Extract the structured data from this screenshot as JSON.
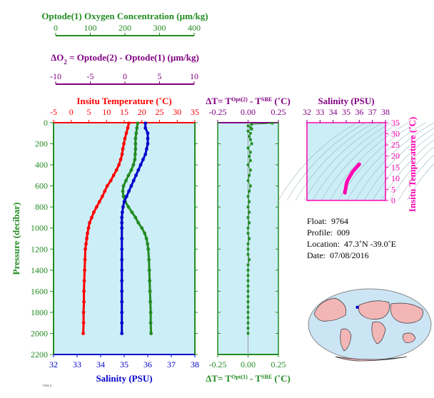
{
  "colors": {
    "green": "#228B22",
    "purple": "#800080",
    "red": "#FF0000",
    "blue": "#0000CC",
    "magenta": "#FF00B0",
    "panel_bg": "#CCEEF7"
  },
  "axes": {
    "oxygen": {
      "label": "Optode(1) Oxygen Concentration",
      "unit": "(µm/kg)",
      "ticks": [
        "0",
        "100",
        "200",
        "300",
        "400"
      ],
      "range": [
        0,
        400
      ]
    },
    "delta_o2": {
      "label": "Optode(2) - Optode(1)",
      "lhs_main": "ΔO",
      "lhs_sub": "2",
      "lhs_eq": " = ",
      "unit": "(µm/kg)",
      "ticks": [
        "-10",
        "-5",
        "0",
        "5",
        "10"
      ],
      "range": [
        -10,
        10
      ]
    },
    "temperature": {
      "label": "Insitu Temperature",
      "unit": "(˚C)",
      "ticks": [
        "-5",
        "0",
        "5",
        "10",
        "15",
        "20",
        "25",
        "30",
        "35"
      ],
      "range": [
        -5,
        35
      ]
    },
    "salinity": {
      "label": "Salinity",
      "unit": "(PSU)",
      "ticks": [
        "32",
        "33",
        "34",
        "35",
        "36",
        "37",
        "38"
      ],
      "range": [
        32,
        38
      ]
    },
    "pressure": {
      "label": "Pressure (decibar)",
      "ticks": [
        "0",
        "200",
        "400",
        "600",
        "800",
        "1000",
        "1200",
        "1400",
        "1600",
        "1800",
        "2000",
        "2200"
      ],
      "range": [
        0,
        2200
      ]
    },
    "dt_top": {
      "prefix": "ΔT= T",
      "sup1": "Opt(2)",
      "mid": " - T",
      "sup2": "SBE",
      "unit": " (˚C)",
      "ticks": [
        "-0.25",
        "0.00",
        "0.25"
      ],
      "range": [
        -0.25,
        0.25
      ]
    },
    "dt_bottom": {
      "prefix": "ΔT= T",
      "sup1": "Opt(1)",
      "mid": " - T",
      "sup2": "SBE",
      "unit": " (˚C)",
      "ticks": [
        "-0.25",
        "0.00",
        "0.25"
      ],
      "range": [
        -0.25,
        0.25
      ]
    },
    "ts_salinity": {
      "label": "Salinity",
      "unit": "(PSU)",
      "ticks": [
        "32",
        "33",
        "34",
        "35",
        "36",
        "37",
        "38"
      ],
      "range": [
        32,
        38
      ]
    },
    "ts_temperature": {
      "label": "Insitu Temperature (˚C)",
      "ticks": [
        "0",
        "5",
        "10",
        "15",
        "20",
        "25",
        "30",
        "35"
      ],
      "range": [
        0,
        35
      ]
    }
  },
  "info": {
    "float_label": "Float:",
    "float": "9764",
    "profile_label": "Profile:",
    "profile": "009",
    "location_label": "Location:",
    "location": "47.3˚N  -39.0˚E",
    "date_label": "Date:",
    "date": "07/08/2016"
  },
  "chart_data": [
    {
      "type": "line",
      "title": "",
      "xlabel": "Insitu Temperature (˚C)",
      "ylabel": "Pressure (decibar)",
      "xlim": [
        -5,
        35
      ],
      "ylim": [
        2200,
        0
      ],
      "series": [
        {
          "name": "Insitu Temperature",
          "color": "red",
          "pressure": [
            5,
            50,
            100,
            150,
            200,
            250,
            300,
            350,
            400,
            450,
            500,
            550,
            600,
            650,
            700,
            750,
            800,
            850,
            900,
            950,
            1000,
            1050,
            1100,
            1150,
            1200,
            1300,
            1400,
            1500,
            1600,
            1700,
            1800,
            1900,
            2000
          ],
          "values": [
            16.3,
            16.0,
            15.6,
            15.2,
            14.9,
            14.6,
            14.4,
            14.0,
            13.5,
            12.8,
            12.0,
            11.2,
            10.2,
            9.5,
            8.8,
            8.0,
            7.2,
            6.4,
            5.8,
            5.2,
            4.9,
            4.6,
            4.4,
            4.2,
            4.0,
            3.9,
            3.8,
            3.7,
            3.6,
            3.6,
            3.5,
            3.5,
            3.4
          ]
        }
      ]
    },
    {
      "type": "line",
      "title": "",
      "xlabel": "Salinity (PSU)",
      "ylabel": "Pressure (decibar)",
      "xlim": [
        32,
        38
      ],
      "ylim": [
        2200,
        0
      ],
      "series": [
        {
          "name": "Salinity",
          "color": "blue",
          "pressure": [
            5,
            50,
            100,
            150,
            200,
            250,
            300,
            350,
            400,
            450,
            500,
            550,
            600,
            650,
            700,
            750,
            800,
            850,
            900,
            950,
            1000,
            1100,
            1200,
            1300,
            1400,
            1500,
            1600,
            1700,
            1800,
            1900,
            2000
          ],
          "values": [
            35.9,
            35.9,
            36.0,
            36.0,
            36.0,
            35.95,
            35.9,
            35.8,
            35.7,
            35.6,
            35.5,
            35.4,
            35.3,
            35.2,
            35.1,
            35.0,
            34.95,
            34.92,
            34.9,
            34.9,
            34.9,
            34.9,
            34.9,
            34.9,
            34.9,
            34.9,
            34.9,
            34.9,
            34.9,
            34.9,
            34.9
          ]
        }
      ]
    },
    {
      "type": "line",
      "title": "",
      "xlabel": "Optode(1) Oxygen Concentration (µm/kg)",
      "ylabel": "Pressure (decibar)",
      "xlim": [
        0,
        400
      ],
      "ylim": [
        2200,
        0
      ],
      "series": [
        {
          "name": "Optode(1) Oxygen Concentration",
          "color": "green",
          "pressure": [
            5,
            50,
            100,
            150,
            200,
            250,
            300,
            350,
            400,
            450,
            500,
            550,
            600,
            650,
            700,
            750,
            800,
            850,
            900,
            950,
            1000,
            1050,
            1100,
            1150,
            1200,
            1300,
            1400,
            1500,
            1600,
            1700,
            1800,
            1900,
            2000
          ],
          "values": [
            238,
            236,
            234,
            232,
            232,
            232,
            231,
            230,
            226,
            220,
            212,
            205,
            198,
            196,
            198,
            203,
            212,
            222,
            232,
            240,
            250,
            258,
            263,
            266,
            268,
            270,
            271,
            272,
            273,
            274,
            275,
            275,
            276
          ]
        }
      ]
    },
    {
      "type": "scatter",
      "title": "",
      "xlabel": "ΔT= T Opt(2) - T SBE (˚C)",
      "ylabel": "",
      "xlim": [
        -0.25,
        0.25
      ],
      "ylim": [
        2200,
        0
      ],
      "series": [
        {
          "name": "ΔT",
          "color": "green",
          "pressure": [
            5,
            15,
            30,
            45,
            60,
            80,
            100,
            130,
            160,
            200,
            240,
            280,
            320,
            360,
            400,
            450,
            500,
            550,
            600,
            650,
            700,
            750,
            800,
            850,
            900,
            950,
            1000,
            1050,
            1100,
            1150,
            1200,
            1250,
            1300,
            1350,
            1400,
            1450,
            1500,
            1550,
            1600,
            1650,
            1700,
            1750,
            1800,
            1850,
            1900,
            1950,
            2000
          ],
          "values": [
            0.2,
            0.03,
            0.0,
            0.02,
            0.03,
            0.0,
            0.02,
            0.01,
            0.02,
            0.03,
            0.0,
            0.02,
            0.01,
            0.02,
            0.0,
            0.02,
            0.01,
            0.0,
            0.02,
            0.01,
            0.0,
            0.01,
            0.0,
            0.01,
            0.0,
            0.01,
            0.0,
            0.0,
            0.01,
            0.0,
            0.0,
            0.0,
            0.01,
            0.0,
            0.0,
            0.0,
            0.0,
            0.0,
            0.0,
            0.0,
            0.0,
            0.0,
            0.0,
            0.0,
            0.0,
            0.0,
            0.0
          ]
        }
      ]
    },
    {
      "type": "line",
      "title": "",
      "xlabel": "Salinity (PSU)",
      "ylabel": "Insitu Temperature (˚C)",
      "xlim": [
        32,
        38
      ],
      "ylim": [
        0,
        35
      ],
      "series": [
        {
          "name": "T-S",
          "color": "magenta",
          "salinity": [
            34.9,
            34.9,
            34.95,
            35.0,
            35.1,
            35.3,
            35.5,
            35.8,
            36.0
          ],
          "values": [
            3.4,
            4.0,
            5.0,
            7.0,
            9.0,
            11.0,
            13.0,
            15.0,
            16.3
          ]
        }
      ]
    }
  ]
}
